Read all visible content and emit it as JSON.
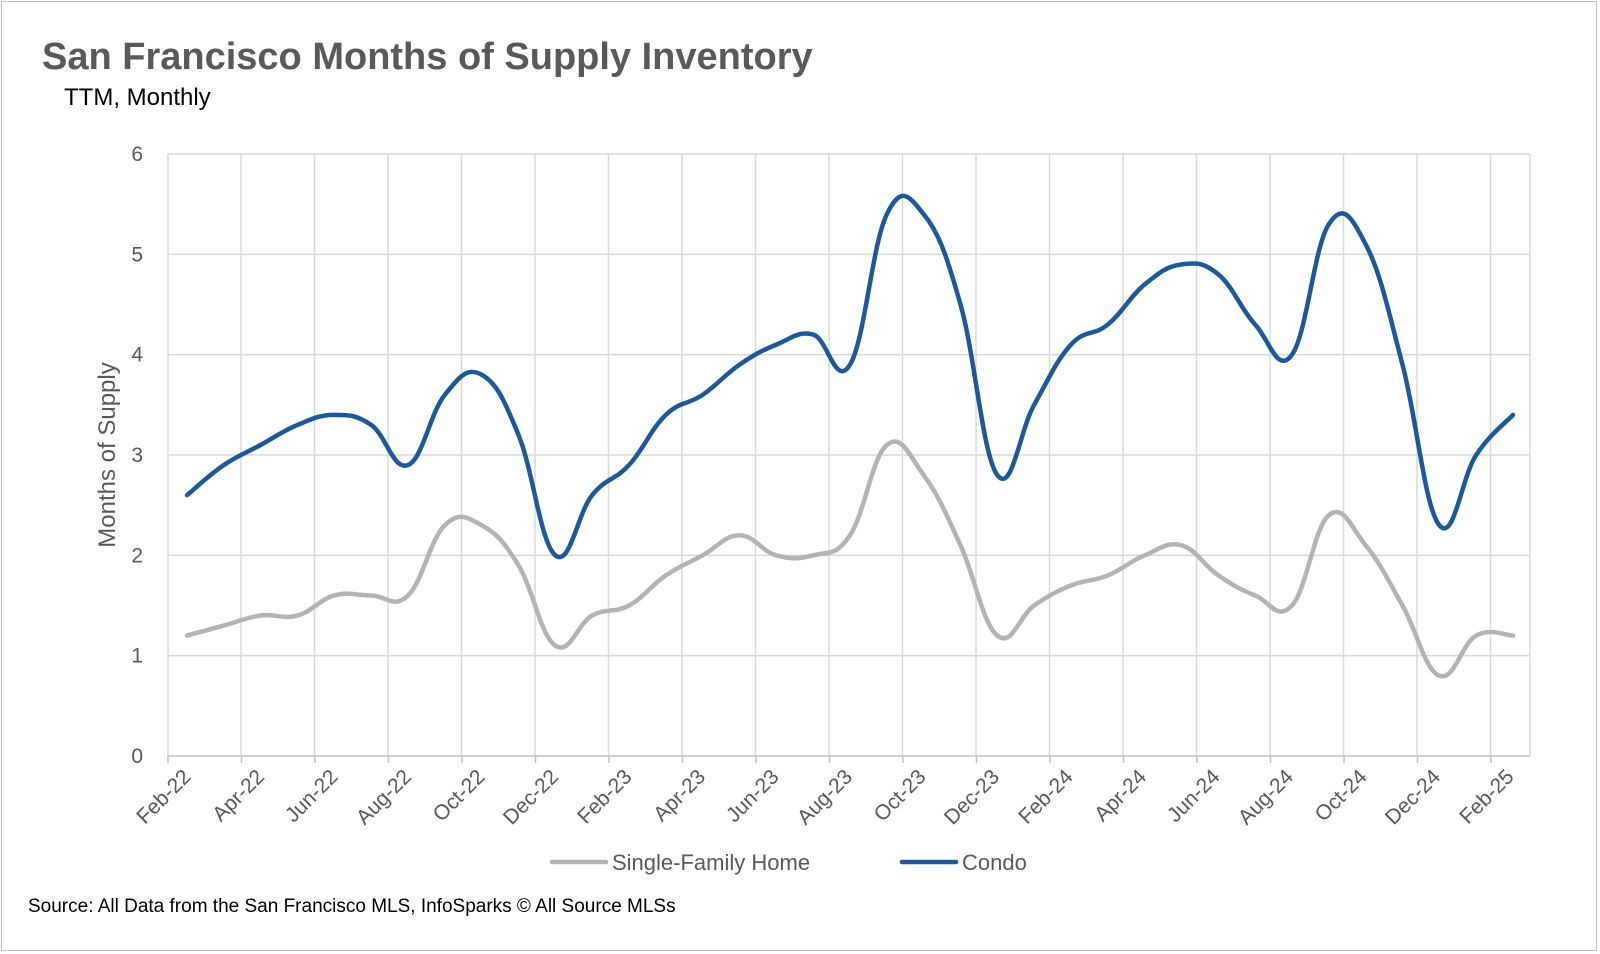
{
  "chart_data": {
    "type": "line",
    "title": "San Francisco Months of Supply Inventory",
    "subtitle": "TTM, Monthly",
    "ylabel": "Months of Supply",
    "xlabel": "",
    "ylim": [
      0,
      6
    ],
    "yticks": [
      "0",
      "1",
      "2",
      "3",
      "4",
      "5",
      "6"
    ],
    "grid": true,
    "legend_position": "bottom",
    "categories": [
      "Feb-22",
      "Mar-22",
      "Apr-22",
      "May-22",
      "Jun-22",
      "Jul-22",
      "Aug-22",
      "Sep-22",
      "Oct-22",
      "Nov-22",
      "Dec-22",
      "Jan-23",
      "Feb-23",
      "Mar-23",
      "Apr-23",
      "May-23",
      "Jun-23",
      "Jul-23",
      "Aug-23",
      "Sep-23",
      "Oct-23",
      "Nov-23",
      "Dec-23",
      "Jan-24",
      "Feb-24",
      "Mar-24",
      "Apr-24",
      "May-24",
      "Jun-24",
      "Jul-24",
      "Aug-24",
      "Sep-24",
      "Oct-24",
      "Nov-24",
      "Dec-24",
      "Jan-25",
      "Feb-25"
    ],
    "tick_labels": [
      "Feb-22",
      "Apr-22",
      "Jun-22",
      "Aug-22",
      "Oct-22",
      "Dec-22",
      "Feb-23",
      "Apr-23",
      "Jun-23",
      "Aug-23",
      "Oct-23",
      "Dec-23",
      "Feb-24",
      "Apr-24",
      "Jun-24",
      "Aug-24",
      "Oct-24",
      "Dec-24",
      "Feb-25"
    ],
    "series": [
      {
        "name": "Single-Family Home",
        "color": "#b3b3b3",
        "values": [
          1.2,
          1.3,
          1.4,
          1.4,
          1.6,
          1.6,
          1.6,
          2.3,
          2.3,
          1.9,
          1.1,
          1.4,
          1.5,
          1.8,
          2.0,
          2.2,
          2.0,
          2.0,
          2.2,
          3.1,
          2.8,
          2.1,
          1.2,
          1.5,
          1.7,
          1.8,
          2.0,
          2.1,
          1.8,
          1.6,
          1.5,
          2.4,
          2.1,
          1.5,
          0.8,
          1.2,
          1.2
        ]
      },
      {
        "name": "Condo",
        "color": "#1f5896",
        "values": [
          2.6,
          2.9,
          3.1,
          3.3,
          3.4,
          3.3,
          2.9,
          3.6,
          3.8,
          3.2,
          2.0,
          2.6,
          2.9,
          3.4,
          3.6,
          3.9,
          4.1,
          4.2,
          3.9,
          5.4,
          5.4,
          4.5,
          2.8,
          3.5,
          4.1,
          4.3,
          4.7,
          4.9,
          4.8,
          4.3,
          4.0,
          5.3,
          5.1,
          3.9,
          2.3,
          3.0,
          3.4
        ]
      }
    ]
  },
  "source_note": "Source: All Data from the San Francisco MLS, InfoSparks © All Source MLSs"
}
